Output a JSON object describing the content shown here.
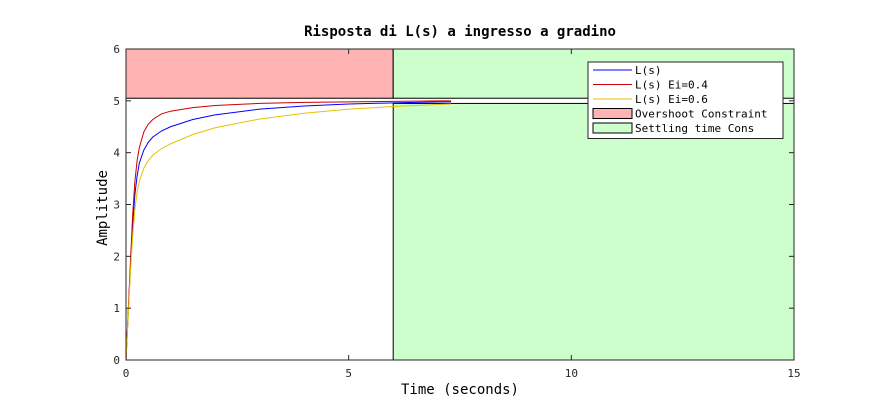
{
  "chart_data": {
    "type": "line",
    "title": "Risposta di L(s) a ingresso a gradino",
    "xlabel": "Time (seconds)",
    "ylabel": "Amplitude",
    "xlim": [
      0,
      15
    ],
    "ylim": [
      0,
      6
    ],
    "xticks": [
      0,
      5,
      10,
      15
    ],
    "yticks": [
      0,
      1,
      2,
      3,
      4,
      5,
      6
    ],
    "legend_position": "top-right",
    "series": [
      {
        "name": "L(s)",
        "color": "#0000ff",
        "x": [
          0,
          0.05,
          0.1,
          0.15,
          0.2,
          0.25,
          0.3,
          0.4,
          0.5,
          0.6,
          0.8,
          1.0,
          1.5,
          2.0,
          3.0,
          4.0,
          5.0,
          6.0,
          7.0,
          7.3
        ],
        "y": [
          0,
          0.9,
          1.8,
          2.6,
          3.2,
          3.55,
          3.8,
          4.05,
          4.2,
          4.3,
          4.42,
          4.5,
          4.64,
          4.73,
          4.84,
          4.9,
          4.94,
          4.96,
          4.98,
          4.98
        ]
      },
      {
        "name": "L(s) Ei=0.4",
        "color": "#cc0000",
        "x": [
          0,
          0.05,
          0.1,
          0.15,
          0.2,
          0.25,
          0.3,
          0.4,
          0.5,
          0.6,
          0.8,
          1.0,
          1.5,
          2.0,
          3.0,
          4.0,
          5.0,
          6.0,
          7.0,
          7.3
        ],
        "y": [
          0,
          0.95,
          1.9,
          2.8,
          3.45,
          3.85,
          4.1,
          4.4,
          4.55,
          4.64,
          4.75,
          4.8,
          4.87,
          4.91,
          4.95,
          4.97,
          4.98,
          4.99,
          5.0,
          5.0
        ]
      },
      {
        "name": "L(s) Ei=0.6",
        "color": "#e6c300",
        "x": [
          0,
          0.05,
          0.1,
          0.15,
          0.2,
          0.25,
          0.3,
          0.4,
          0.5,
          0.6,
          0.8,
          1.0,
          1.5,
          2.0,
          3.0,
          4.0,
          5.0,
          6.0,
          7.0,
          7.3
        ],
        "y": [
          0,
          0.85,
          1.7,
          2.4,
          2.9,
          3.25,
          3.45,
          3.7,
          3.85,
          3.95,
          4.08,
          4.17,
          4.35,
          4.48,
          4.65,
          4.76,
          4.84,
          4.89,
          4.93,
          4.94
        ]
      }
    ],
    "regions": [
      {
        "name": "Overshoot Constraint",
        "fill": "#ffb3b3",
        "x": [
          0,
          6
        ],
        "y": [
          5.05,
          6
        ]
      },
      {
        "name": "Settling time Cons",
        "fill": "#ccffcc",
        "x": [
          6,
          15
        ],
        "y": [
          0,
          4.95
        ],
        "x2": [
          6,
          15
        ],
        "y2": [
          5.05,
          6
        ]
      }
    ]
  }
}
